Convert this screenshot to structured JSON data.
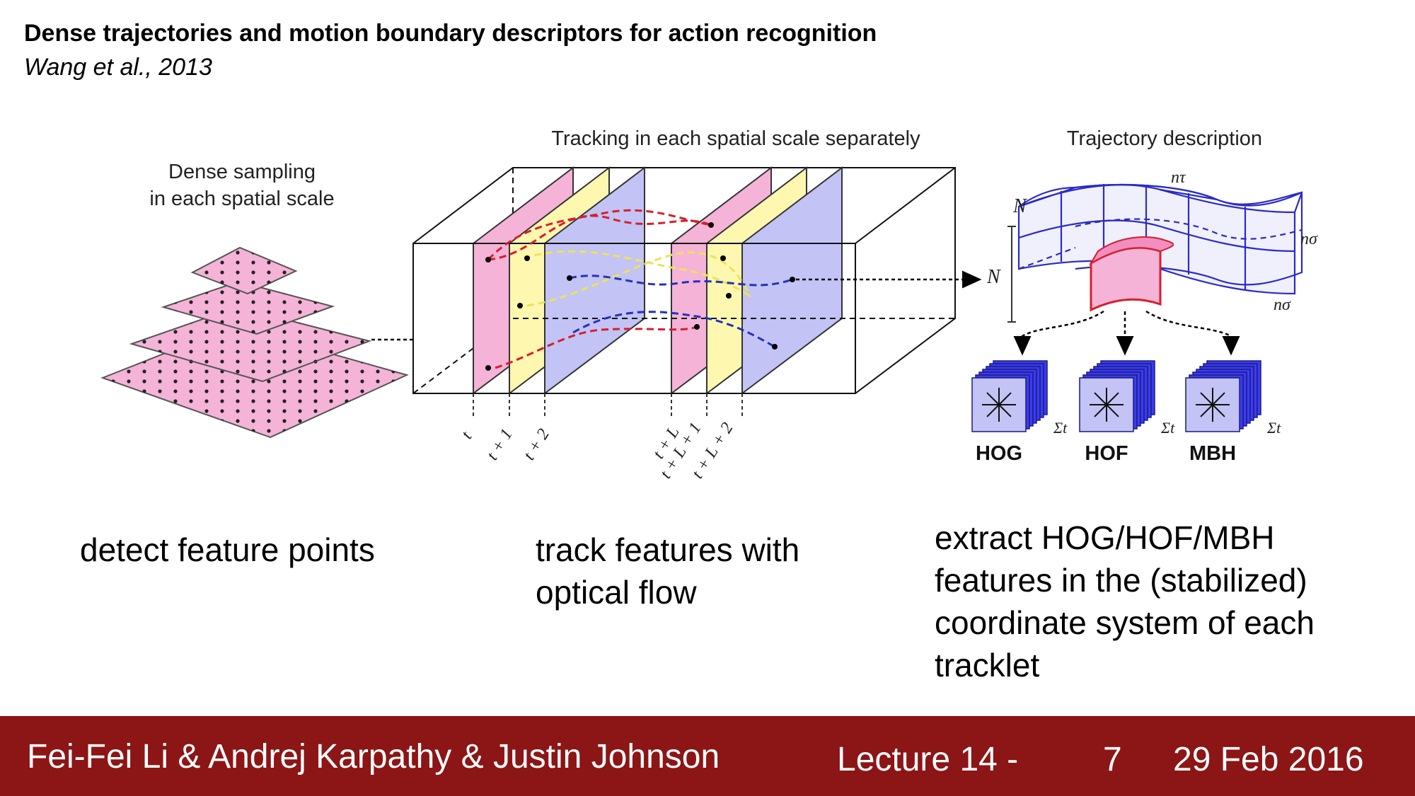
{
  "slide": {
    "paper_title": "Dense trajectories and motion boundary descriptors for action recognition",
    "paper_citation": "Wang et al., 2013"
  },
  "figure": {
    "sampling_label_line1": "Dense sampling",
    "sampling_label_line2": "in each spatial scale",
    "tracking_label": "Tracking in each spatial scale separately",
    "description_label": "Trajectory description",
    "time_labels": [
      "t",
      "t + 1",
      "t + 2",
      "t + L",
      "t + L + 1",
      "t + L + 2"
    ],
    "volume_labels": {
      "N_top": "N",
      "N_side": "N",
      "n_tau": "nτ",
      "n_sigma_top": "nσ",
      "n_sigma_bottom": "nσ"
    },
    "descriptors": [
      {
        "name": "HOG",
        "sum_label": "Σt",
        "color": "#3c3cf0"
      },
      {
        "name": "HOF",
        "sum_label": "Σt",
        "color": "#3c3cf0"
      },
      {
        "name": "MBH",
        "sum_label": "Σt",
        "color": "#3c3cf0"
      }
    ],
    "colors": {
      "pink": "#f5b3d8",
      "yellow": "#fdf7b0",
      "lavender": "#c3c3f5",
      "red_track": "#d81e2c",
      "yellow_track": "#ece35a",
      "blue_track": "#2233bb"
    }
  },
  "captions": {
    "detect": "detect feature points",
    "track": "track features with optical flow",
    "extract": "extract HOG/HOF/MBH features in the (stabilized) coordinate system of each tracklet"
  },
  "footer": {
    "authors": "Fei-Fei Li & Andrej Karpathy & Justin Johnson",
    "lecture": "Lecture 14 -",
    "page": "7",
    "date": "29 Feb 2016",
    "background": "#8c1515"
  }
}
